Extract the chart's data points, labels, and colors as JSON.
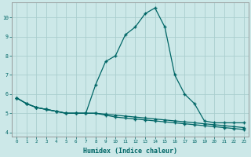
{
  "x": [
    0,
    1,
    2,
    3,
    4,
    5,
    6,
    7,
    8,
    9,
    10,
    11,
    12,
    13,
    14,
    15,
    16,
    17,
    18,
    19,
    20,
    21,
    22,
    23
  ],
  "main_y": [
    5.8,
    5.5,
    5.3,
    5.2,
    5.1,
    5.0,
    5.0,
    5.0,
    6.5,
    7.7,
    8.0,
    9.1,
    9.5,
    10.2,
    10.5,
    9.5,
    7.0,
    6.0,
    5.5,
    4.6,
    4.5,
    4.5,
    4.5,
    4.5
  ],
  "line2": [
    5.8,
    5.5,
    5.3,
    5.2,
    5.1,
    5.0,
    5.0,
    5.0,
    5.0,
    4.95,
    4.9,
    4.85,
    4.8,
    4.75,
    4.7,
    4.65,
    4.6,
    4.55,
    4.5,
    4.45,
    4.4,
    4.35,
    4.3,
    4.25
  ],
  "line3": [
    5.8,
    5.5,
    5.3,
    5.2,
    5.1,
    5.0,
    5.0,
    5.0,
    5.0,
    4.9,
    4.8,
    4.75,
    4.7,
    4.65,
    4.6,
    4.55,
    4.5,
    4.45,
    4.4,
    4.35,
    4.3,
    4.25,
    4.2,
    4.15
  ],
  "bg_color": "#cce8e8",
  "grid_color": "#aacece",
  "line_color": "#006666",
  "xlabel": "Humidex (Indice chaleur)",
  "ylim": [
    3.8,
    10.8
  ],
  "xlim": [
    -0.5,
    23.5
  ],
  "yticks": [
    4,
    5,
    6,
    7,
    8,
    9,
    10
  ],
  "xticks": [
    0,
    1,
    2,
    3,
    4,
    5,
    6,
    7,
    8,
    9,
    10,
    11,
    12,
    13,
    14,
    15,
    16,
    17,
    18,
    19,
    20,
    21,
    22,
    23
  ]
}
